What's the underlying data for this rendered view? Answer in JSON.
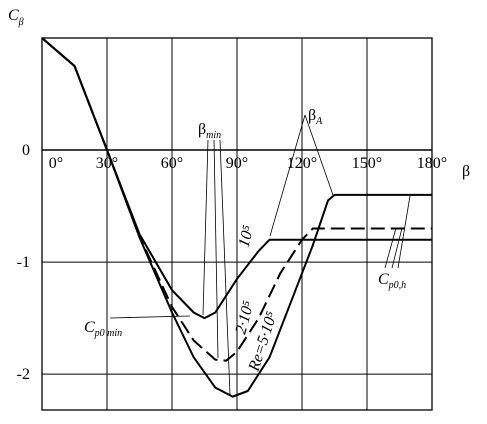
{
  "chart_data": {
    "type": "line",
    "y_label": {
      "main": "C",
      "sub": "β"
    },
    "x_label": "β",
    "xlim": [
      0,
      180
    ],
    "ylim": [
      -2.32,
      1
    ],
    "xticks": [
      {
        "value": 0,
        "label": "0°"
      },
      {
        "value": 30,
        "label": "30°"
      },
      {
        "value": 60,
        "label": "60°"
      },
      {
        "value": 90,
        "label": "90°"
      },
      {
        "value": 120,
        "label": "120°"
      },
      {
        "value": 150,
        "label": "150°"
      },
      {
        "value": 180,
        "label": "180°"
      }
    ],
    "yticks": [
      0,
      -1,
      -2
    ],
    "grid": true,
    "series": [
      {
        "name": "10⁵",
        "color": "#000000",
        "dash": false,
        "x": [
          0,
          15,
          30,
          45,
          60,
          70,
          75,
          80,
          90,
          100,
          105,
          180
        ],
        "values": [
          1,
          0.75,
          0,
          -0.75,
          -1.25,
          -1.45,
          -1.5,
          -1.45,
          -1.15,
          -0.9,
          -0.8,
          -0.8
        ]
      },
      {
        "name": "2·10⁵",
        "color": "#000000",
        "dash": true,
        "x": [
          0,
          15,
          30,
          45,
          60,
          70,
          80,
          85,
          90,
          100,
          110,
          120,
          125,
          180
        ],
        "values": [
          1,
          0.75,
          0,
          -0.77,
          -1.4,
          -1.7,
          -1.87,
          -1.88,
          -1.8,
          -1.5,
          -1.1,
          -0.8,
          -0.7,
          -0.7
        ]
      },
      {
        "name": "Re=5·10⁵",
        "color": "#000000",
        "dash": false,
        "x": [
          0,
          15,
          30,
          45,
          60,
          70,
          80,
          88,
          95,
          105,
          115,
          125,
          132,
          135,
          180
        ],
        "values": [
          1,
          0.75,
          0,
          -0.78,
          -1.45,
          -1.85,
          -2.12,
          -2.2,
          -2.15,
          -1.85,
          -1.35,
          -0.85,
          -0.45,
          -0.4,
          -0.4
        ]
      }
    ],
    "annotations": [
      {
        "main": "β",
        "sub": "min"
      },
      {
        "main": "β",
        "sub": "A"
      },
      {
        "main": "C",
        "sub": "p0 min"
      },
      {
        "main": "C",
        "sub": "p0,h"
      }
    ]
  }
}
